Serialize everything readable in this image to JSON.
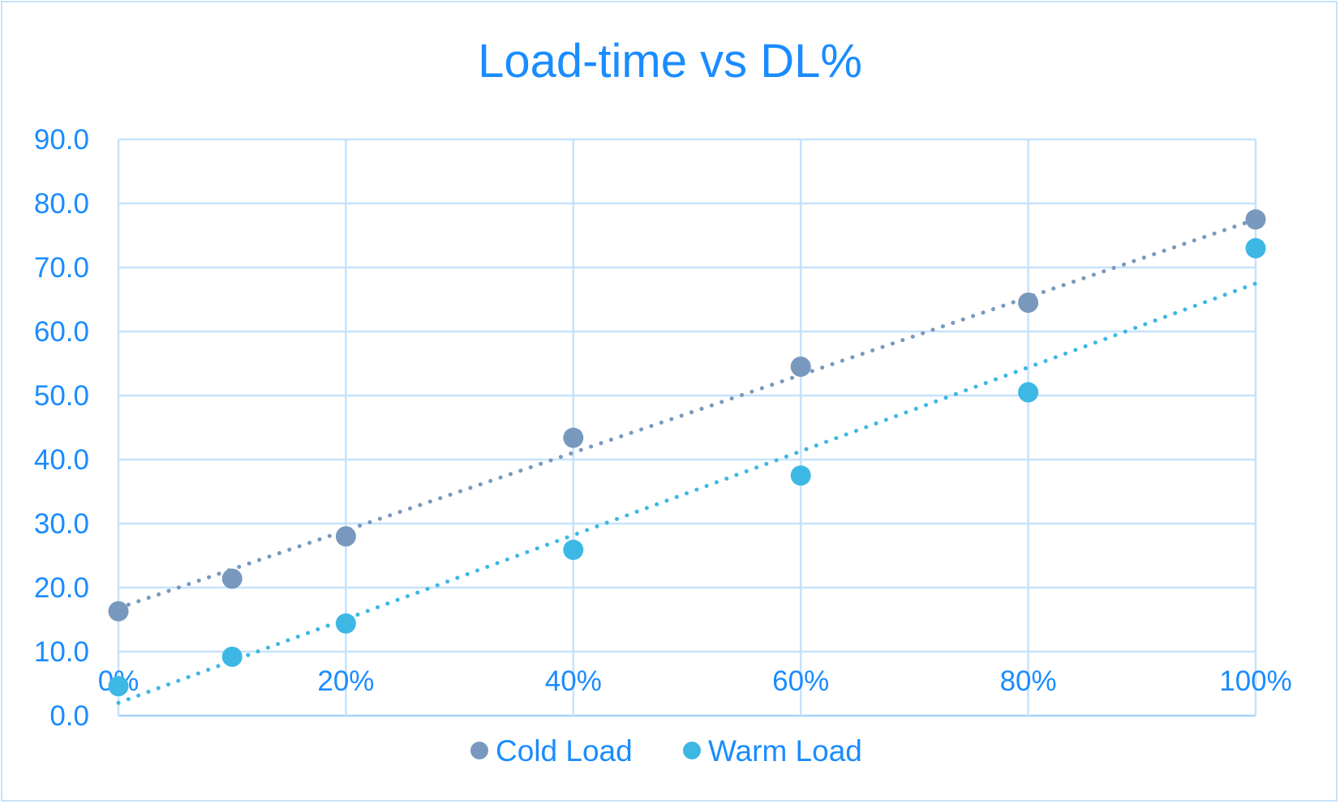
{
  "chart_data": {
    "type": "scatter",
    "title": "Load-time vs DL%",
    "xlabel": "",
    "ylabel": "",
    "xlim": [
      0,
      100
    ],
    "ylim": [
      0,
      90
    ],
    "x_ticks": [
      "0%",
      "20%",
      "40%",
      "60%",
      "80%",
      "100%"
    ],
    "x_tick_values": [
      0,
      20,
      40,
      60,
      80,
      100
    ],
    "y_ticks": [
      "0.0",
      "10.0",
      "20.0",
      "30.0",
      "40.0",
      "50.0",
      "60.0",
      "70.0",
      "80.0",
      "90.0"
    ],
    "y_tick_values": [
      0,
      10,
      20,
      30,
      40,
      50,
      60,
      70,
      80,
      90
    ],
    "grid": true,
    "legend_position": "bottom",
    "series": [
      {
        "name": "Cold Load",
        "color": "#7899bd",
        "x": [
          0,
          10,
          20,
          40,
          60,
          80,
          100
        ],
        "y": [
          16.3,
          21.4,
          28.0,
          43.4,
          54.5,
          64.5,
          77.5
        ],
        "trendline": {
          "style": "dotted",
          "x": [
            0,
            100
          ],
          "y": [
            16.8,
            77.5
          ]
        }
      },
      {
        "name": "Warm Load",
        "color": "#3db8e4",
        "x": [
          0,
          10,
          20,
          40,
          60,
          80,
          100
        ],
        "y": [
          4.6,
          9.2,
          14.4,
          25.9,
          37.5,
          50.5,
          73.0
        ],
        "trendline": {
          "style": "dotted",
          "x": [
            0,
            100
          ],
          "y": [
            2.0,
            67.5
          ]
        }
      }
    ]
  }
}
